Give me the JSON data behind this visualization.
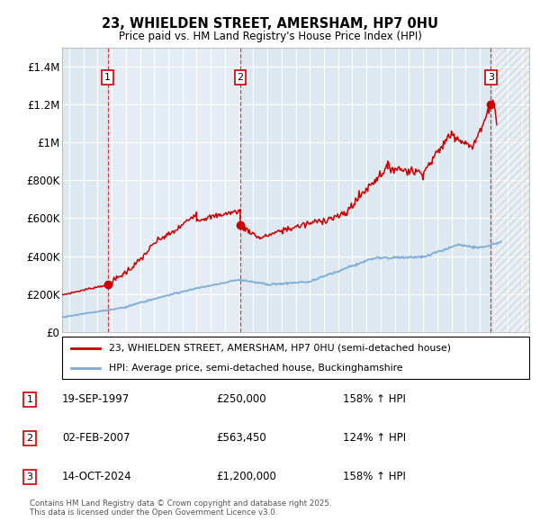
{
  "title": "23, WHIELDEN STREET, AMERSHAM, HP7 0HU",
  "subtitle": "Price paid vs. HM Land Registry's House Price Index (HPI)",
  "ylim": [
    0,
    1500000
  ],
  "xlim": [
    1994.5,
    2027.5
  ],
  "yticks": [
    0,
    200000,
    400000,
    600000,
    800000,
    1000000,
    1200000,
    1400000
  ],
  "ytick_labels": [
    "£0",
    "£200K",
    "£400K",
    "£600K",
    "£800K",
    "£1M",
    "£1.2M",
    "£1.4M"
  ],
  "xticks": [
    1995,
    1996,
    1997,
    1998,
    1999,
    2000,
    2001,
    2002,
    2003,
    2004,
    2005,
    2006,
    2007,
    2008,
    2009,
    2010,
    2011,
    2012,
    2013,
    2014,
    2015,
    2016,
    2017,
    2018,
    2019,
    2020,
    2021,
    2022,
    2023,
    2024,
    2025,
    2026,
    2027
  ],
  "bg_color": "#ffffff",
  "plot_bg_color": "#dde8f0",
  "plot_bg_color2": "#e8f0f8",
  "grid_color": "#ffffff",
  "red_color": "#cc0000",
  "blue_color": "#7dadd4",
  "sale_points": [
    {
      "year": 1997.72,
      "price": 250000,
      "label": "1"
    },
    {
      "year": 2007.08,
      "price": 563450,
      "label": "2"
    },
    {
      "year": 2024.79,
      "price": 1200000,
      "label": "3"
    }
  ],
  "legend_red": "23, WHIELDEN STREET, AMERSHAM, HP7 0HU (semi-detached house)",
  "legend_blue": "HPI: Average price, semi-detached house, Buckinghamshire",
  "table_rows": [
    {
      "num": "1",
      "date": "19-SEP-1997",
      "price": "£250,000",
      "hpi": "158% ↑ HPI"
    },
    {
      "num": "2",
      "date": "02-FEB-2007",
      "price": "£563,450",
      "hpi": "124% ↑ HPI"
    },
    {
      "num": "3",
      "date": "14-OCT-2024",
      "price": "£1,200,000",
      "hpi": "158% ↑ HPI"
    }
  ],
  "footer": "Contains HM Land Registry data © Crown copyright and database right 2025.\nThis data is licensed under the Open Government Licence v3.0.",
  "hatch_start": 2025.0
}
